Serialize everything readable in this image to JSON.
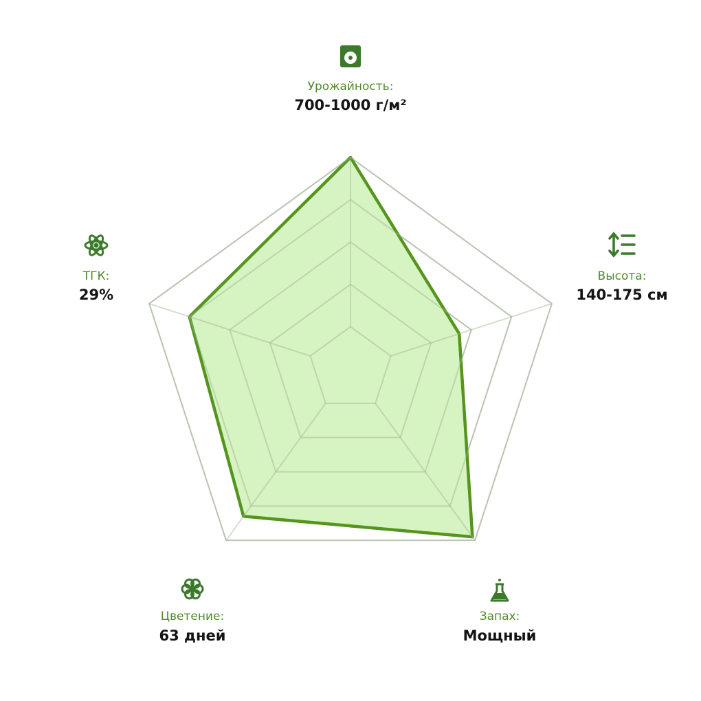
{
  "chart_data": {
    "type": "radar",
    "categories": [
      "Урожайность:",
      "Высота:",
      "Запах:",
      "Цветение:",
      "ТГК:"
    ],
    "details": [
      "700-1000 г/м²",
      "140-175 см",
      "Мощный",
      "63 дней",
      "29%"
    ],
    "values": [
      5,
      2.7,
      4.9,
      4.3,
      4
    ],
    "rlim": [
      0,
      5
    ],
    "rticks": [
      1,
      2,
      3,
      4,
      5
    ],
    "color": "#55951e",
    "fill": "#d2f2bb",
    "grid": true
  }
}
